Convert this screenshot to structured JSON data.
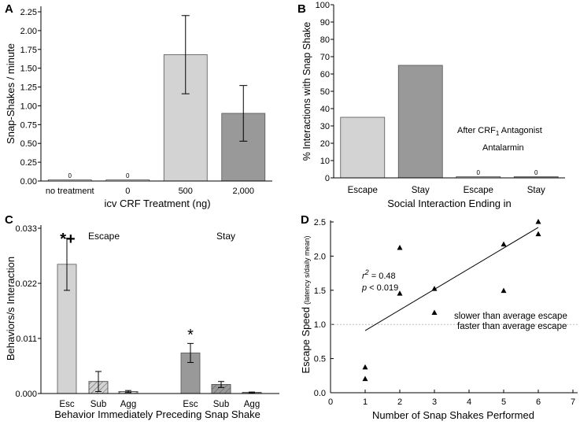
{
  "chart_data": [
    {
      "panel": "A",
      "type": "bar",
      "ylabel": "Snap-Shakes / minute",
      "xlabel": "icv CRF Treatment (ng)",
      "ylim": [
        0,
        2.25
      ],
      "yticks": [
        "0.00",
        "0.25",
        "0.50",
        "0.75",
        "1.00",
        "1.25",
        "1.50",
        "1.75",
        "2.00",
        "2.25"
      ],
      "categories": [
        "no treatment",
        "0",
        "500",
        "2,000"
      ],
      "values": [
        0.0,
        0.0,
        1.68,
        0.9
      ],
      "errors": [
        0,
        0,
        0.52,
        0.37
      ],
      "colors": [
        "#ffffff",
        "#ffffff",
        "#d3d3d3",
        "#999999"
      ],
      "zero_labels": [
        "0",
        "0"
      ]
    },
    {
      "panel": "B",
      "type": "bar",
      "ylabel": "% Interactions with Snap Shake",
      "xlabel": "Social Interaction Ending in",
      "ylim": [
        0,
        100
      ],
      "yticks": [
        "0",
        "10",
        "20",
        "30",
        "40",
        "50",
        "60",
        "70",
        "80",
        "90",
        "100"
      ],
      "categories": [
        "Escape",
        "Stay",
        "Escape",
        "Stay"
      ],
      "values": [
        35,
        65,
        0,
        0
      ],
      "colors": [
        "#d3d3d3",
        "#999999",
        "#d3d3d3",
        "#999999"
      ],
      "zero_labels": [
        "0",
        "0"
      ],
      "annotation_line1": "After CRF",
      "annotation_sub": "1",
      "annotation_line1_end": " Antagonist",
      "annotation_line2": "Antalarmin"
    },
    {
      "panel": "C",
      "type": "bar",
      "ylabel": "Behaviors/s Interaction",
      "xlabel": "Behavior Immediately Preceding Snap Shake",
      "ylim": [
        0,
        0.033
      ],
      "yticks": [
        "0.000",
        "0.011",
        "0.022",
        "0.033"
      ],
      "categories": [
        "Esc",
        "Sub",
        "Agg",
        "Esc",
        "Sub",
        "Agg"
      ],
      "groups": [
        "Escape",
        "Stay"
      ],
      "values": [
        0.0258,
        0.0024,
        0.0004,
        0.0081,
        0.0018,
        0.0002
      ],
      "errors": [
        0.0052,
        0.002,
        0.0002,
        0.0019,
        0.0006,
        0.0001
      ],
      "colors": [
        "#d3d3d3",
        "#d3d3d3",
        "#d3d3d3",
        "#999999",
        "#999999",
        "#999999"
      ],
      "significance": [
        "*+",
        "*"
      ]
    },
    {
      "panel": "D",
      "type": "scatter",
      "ylabel": "Escape Speed",
      "ylabel_small": "(latency s/daily mean)",
      "xlabel": "Number of Snap Shakes Performed",
      "xlim": [
        0,
        7
      ],
      "ylim": [
        0,
        2.5
      ],
      "xticks": [
        "0",
        "1",
        "2",
        "3",
        "4",
        "5",
        "6",
        "7"
      ],
      "yticks": [
        "0.0",
        "0.5",
        "1.0",
        "1.5",
        "2.0",
        "2.5"
      ],
      "x": [
        1,
        1,
        2,
        2,
        3,
        3,
        5,
        5,
        6,
        6
      ],
      "y": [
        0.37,
        0.2,
        2.12,
        1.45,
        1.52,
        1.17,
        2.17,
        1.49,
        2.5,
        2.32
      ],
      "fit_line": {
        "x": [
          1,
          6
        ],
        "y": [
          0.91,
          2.42
        ]
      },
      "reference_y": 1.0,
      "r2_label": "r",
      "r2_sup": "2",
      "r2_value": " = 0.48",
      "p_label": "p",
      "p_value": " < 0.019",
      "note_above": "slower than average escape",
      "note_below": "faster than average escape"
    }
  ],
  "panel_letters": [
    "A",
    "B",
    "C",
    "D"
  ]
}
